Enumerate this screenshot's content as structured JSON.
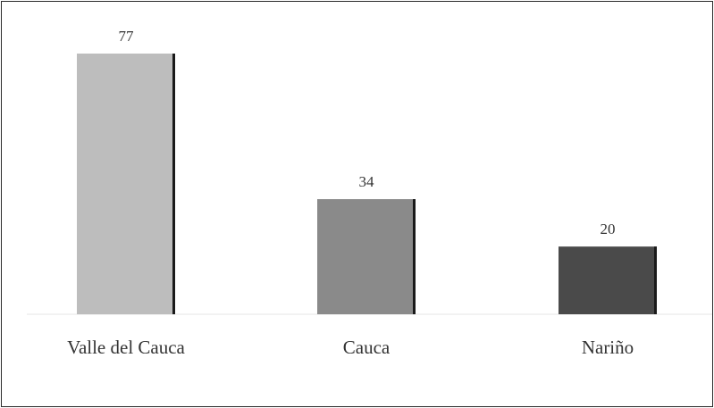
{
  "chart_data": {
    "type": "bar",
    "categories": [
      "Valle del Cauca",
      "Cauca",
      "Nariño"
    ],
    "values": [
      77,
      34,
      20
    ],
    "colors": [
      "#bdbdbd",
      "#8a8a8a",
      "#4a4a4a"
    ],
    "title": "",
    "xlabel": "",
    "ylabel": "",
    "ylim": [
      0,
      77
    ],
    "grid": false,
    "legend": "none",
    "data_labels": true
  }
}
